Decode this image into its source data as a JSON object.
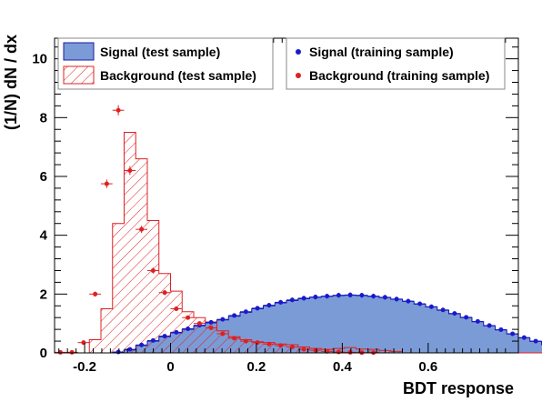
{
  "chart_data": {
    "type": "histogram",
    "xlabel": "BDT response",
    "ylabel": "(1/N) dN / dx",
    "xlim": [
      -0.27,
      0.81
    ],
    "ylim": [
      0,
      10.7
    ],
    "x_ticks": [
      -0.2,
      0,
      0.2,
      0.4,
      0.6
    ],
    "x_tick_labels": [
      "-0.2",
      "0",
      "0.2",
      "0.4",
      "0.6"
    ],
    "y_ticks": [
      0,
      2,
      4,
      6,
      8,
      10
    ],
    "y_tick_labels": [
      "0",
      "2",
      "4",
      "6",
      "8",
      "10"
    ],
    "bin_edges_start": -0.27,
    "bin_width": 0.027,
    "series": [
      {
        "name": "Signal (test sample)",
        "kind": "filled-histogram",
        "color": "#7b9bd6",
        "edge_color": "#1a1aa6",
        "values": [
          0,
          0,
          0,
          0,
          0,
          0.02,
          0.1,
          0.25,
          0.4,
          0.55,
          0.68,
          0.8,
          0.92,
          1.02,
          1.12,
          1.25,
          1.38,
          1.5,
          1.6,
          1.7,
          1.78,
          1.84,
          1.89,
          1.92,
          1.95,
          1.96,
          1.95,
          1.92,
          1.88,
          1.82,
          1.75,
          1.66,
          1.56,
          1.45,
          1.33,
          1.2,
          1.06,
          0.92,
          0.78,
          0.64,
          0.51,
          0.39,
          0.28,
          0.19,
          0.12,
          0.06,
          0.03,
          0.01,
          0,
          0
        ]
      },
      {
        "name": "Background (test sample)",
        "kind": "hatched-histogram",
        "color": "#e02020",
        "values": [
          0,
          0,
          0,
          0.45,
          1.5,
          4.4,
          7.5,
          6.6,
          4.5,
          2.7,
          2.1,
          1.4,
          1.2,
          1.05,
          0.75,
          0.55,
          0.45,
          0.38,
          0.35,
          0.3,
          0.28,
          0.2,
          0.15,
          0.12,
          0.15,
          0.18,
          0.13,
          0.12,
          0.08,
          0.05,
          0,
          0,
          0,
          0,
          0,
          0,
          0,
          0,
          0,
          0,
          0,
          0,
          0,
          0,
          0,
          0,
          0,
          0,
          0,
          0
        ]
      },
      {
        "name": "Signal (training sample)",
        "kind": "points",
        "color": "#1a1acc",
        "values": [
          0,
          0,
          0,
          0,
          0,
          0.03,
          0.12,
          0.27,
          0.42,
          0.57,
          0.7,
          0.82,
          0.94,
          1.04,
          1.14,
          1.27,
          1.4,
          1.52,
          1.62,
          1.72,
          1.8,
          1.86,
          1.9,
          1.93,
          1.96,
          1.97,
          1.96,
          1.93,
          1.89,
          1.83,
          1.76,
          1.67,
          1.57,
          1.46,
          1.34,
          1.21,
          1.07,
          0.93,
          0.79,
          0.65,
          0.52,
          0.4,
          0.29,
          0.2,
          0.13,
          0.07,
          0.04,
          0.02,
          0.01,
          0
        ]
      },
      {
        "name": "Background (training sample)",
        "kind": "points",
        "color": "#e02020",
        "values": [
          0.02,
          0.02,
          0.35,
          2.0,
          5.75,
          8.25,
          6.2,
          4.2,
          2.8,
          2.05,
          1.5,
          1.2,
          1.0,
          0.85,
          0.65,
          0.5,
          0.4,
          0.35,
          0.3,
          0.25,
          0.2,
          0.12,
          0.09,
          0.05,
          0.03,
          0.02,
          0.01,
          0.01,
          0,
          0,
          0,
          0,
          0,
          0,
          0,
          0,
          0,
          0,
          0,
          0,
          0,
          0,
          0,
          0,
          0,
          0,
          0,
          0,
          0,
          0
        ]
      }
    ],
    "legend": [
      {
        "label": "Signal (test sample)",
        "style": "filled"
      },
      {
        "label": "Background (test sample)",
        "style": "hatched"
      },
      {
        "label": "Signal (training sample)",
        "style": "point-blue"
      },
      {
        "label": "Background (training sample)",
        "style": "point-red"
      }
    ]
  }
}
